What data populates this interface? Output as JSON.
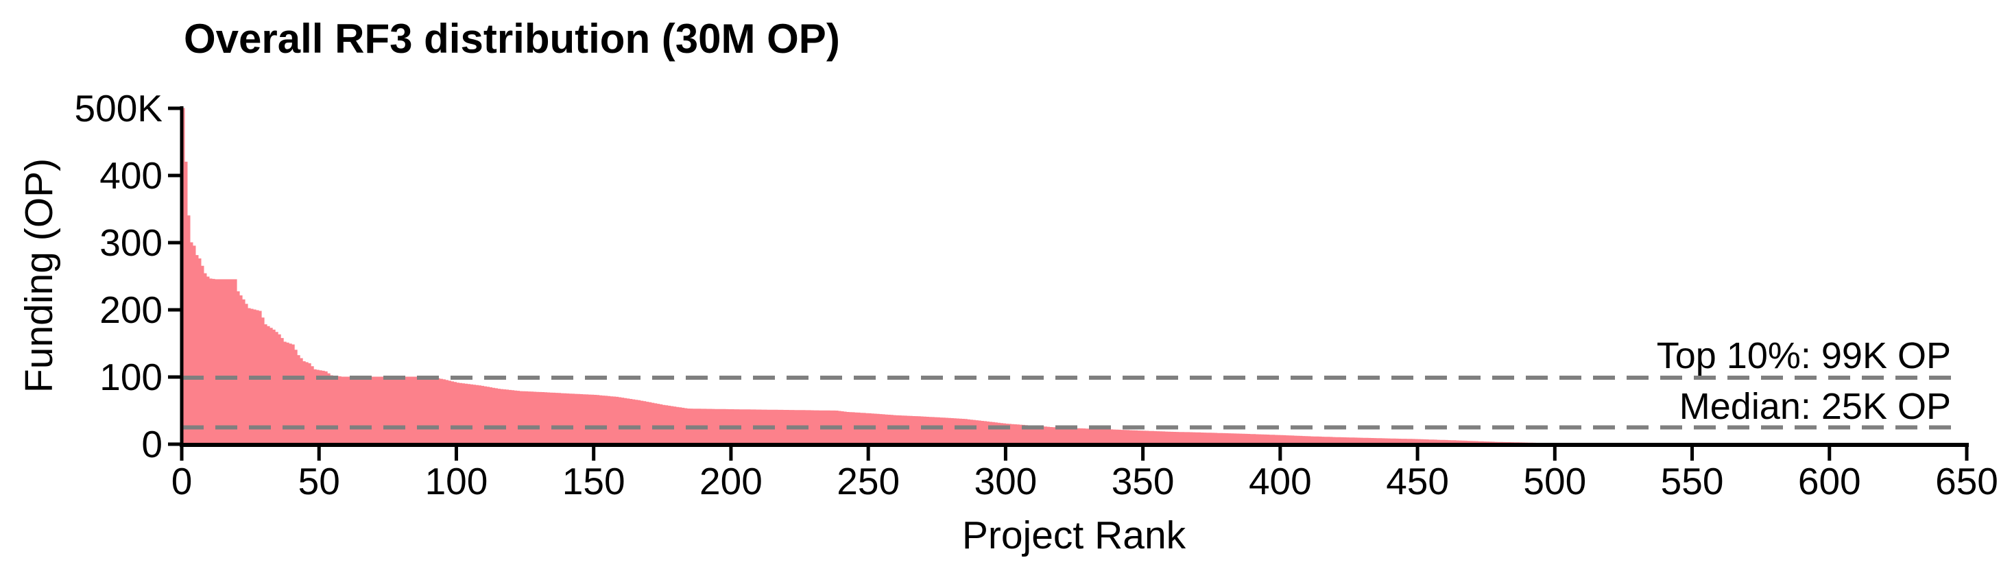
{
  "colors": {
    "area": "#FC818B",
    "dashed_line": "#7F7F7F",
    "axis": "#000000",
    "text": "#000000",
    "background": "#FFFFFF"
  },
  "chart_data": {
    "type": "area",
    "title": "Overall RF3 distribution (30M OP)",
    "xlabel": "Project Rank",
    "ylabel": "Funding (OP)",
    "xlim": [
      0,
      650
    ],
    "ylim": [
      0,
      500
    ],
    "y_unit": "thousand OP",
    "grid": false,
    "legend": "none",
    "x_ticks": [
      0,
      50,
      100,
      150,
      200,
      250,
      300,
      350,
      400,
      450,
      500,
      550,
      600,
      650
    ],
    "y_ticks": [
      {
        "value": 0,
        "label": "0"
      },
      {
        "value": 100,
        "label": "100"
      },
      {
        "value": 200,
        "label": "200"
      },
      {
        "value": 300,
        "label": "300"
      },
      {
        "value": 400,
        "label": "400"
      },
      {
        "value": 500,
        "label": "500K"
      }
    ],
    "annotations": [
      {
        "label": "Top 10%: 99K OP",
        "value": 99
      },
      {
        "label": "Median: 25K OP",
        "value": 25
      }
    ],
    "series": [
      {
        "name": "funding-by-project-rank",
        "style": "filled-steps",
        "last_rank": 500,
        "anchors_rank_vs_kop": [
          [
            0,
            500
          ],
          [
            1,
            420
          ],
          [
            2,
            340
          ],
          [
            3,
            300
          ],
          [
            4,
            295
          ],
          [
            5,
            281
          ],
          [
            6,
            276
          ],
          [
            7,
            265
          ],
          [
            8,
            254
          ],
          [
            9,
            249
          ],
          [
            10,
            246
          ],
          [
            12,
            245
          ],
          [
            19,
            245
          ],
          [
            20,
            227
          ],
          [
            22,
            215
          ],
          [
            24,
            202
          ],
          [
            28,
            198
          ],
          [
            30,
            178
          ],
          [
            33,
            170
          ],
          [
            35,
            163
          ],
          [
            37,
            152
          ],
          [
            40,
            148
          ],
          [
            42,
            132
          ],
          [
            44,
            123
          ],
          [
            46,
            120
          ],
          [
            48,
            111
          ],
          [
            52,
            108
          ],
          [
            54,
            102
          ],
          [
            58,
            100
          ],
          [
            90,
            100
          ],
          [
            95,
            96
          ],
          [
            100,
            91
          ],
          [
            108,
            87
          ],
          [
            115,
            82
          ],
          [
            123,
            78.5
          ],
          [
            131,
            77
          ],
          [
            140,
            75
          ],
          [
            150,
            73
          ],
          [
            158,
            70
          ],
          [
            166,
            65
          ],
          [
            175,
            58
          ],
          [
            184,
            52.5
          ],
          [
            200,
            51.5
          ],
          [
            220,
            50.5
          ],
          [
            238,
            49.5
          ],
          [
            242,
            47.5
          ],
          [
            250,
            45.5
          ],
          [
            260,
            42.5
          ],
          [
            268,
            41
          ],
          [
            277,
            39
          ],
          [
            285,
            37
          ],
          [
            300,
            30
          ],
          [
            310,
            27
          ],
          [
            318,
            24.4
          ],
          [
            326,
            23.2
          ],
          [
            335,
            22
          ],
          [
            350,
            19.5
          ],
          [
            360,
            18
          ],
          [
            370,
            17
          ],
          [
            385,
            15.2
          ],
          [
            400,
            13
          ],
          [
            410,
            11.3
          ],
          [
            420,
            10
          ],
          [
            435,
            8.5
          ],
          [
            450,
            7
          ],
          [
            465,
            5
          ],
          [
            478,
            3
          ],
          [
            490,
            1.8
          ],
          [
            498,
            1
          ],
          [
            500,
            0.8
          ]
        ]
      }
    ]
  }
}
